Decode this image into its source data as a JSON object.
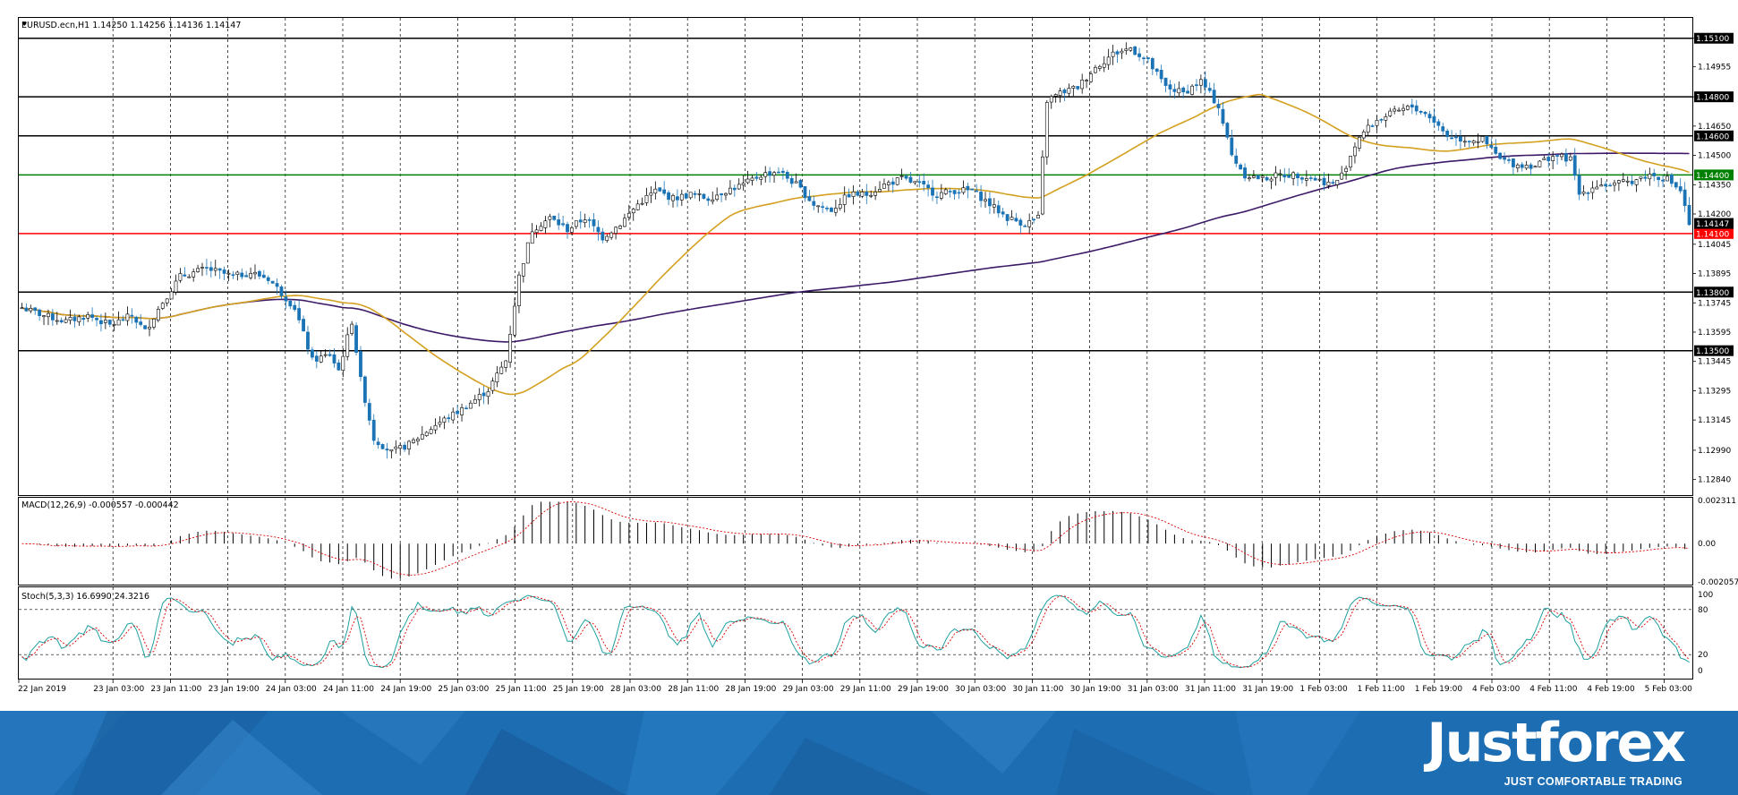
{
  "chart_data": {
    "type": "candlestick",
    "symbol_header": "EURUSD.ecn,H1  1.14250 1.14256 1.14136 1.14147",
    "ylim": [
      1.12765,
      1.15195
    ],
    "price_ticks": [
      "1.15100",
      "1.14955",
      "1.14800",
      "1.14650",
      "1.14500",
      "1.14350",
      "1.14200",
      "1.14045",
      "1.13895",
      "1.13745",
      "1.13595",
      "1.13445",
      "1.13295",
      "1.13145",
      "1.12990",
      "1.12840"
    ],
    "levels": [
      {
        "price": 1.151,
        "label": "1.15100",
        "color": "#000000"
      },
      {
        "price": 1.148,
        "label": "1.14800",
        "color": "#000000"
      },
      {
        "price": 1.146,
        "label": "1.14600",
        "color": "#000000"
      },
      {
        "price": 1.144,
        "label": "1.14400",
        "color": "#008000"
      },
      {
        "price": 1.141,
        "label": "1.14100",
        "color": "#ff0000"
      },
      {
        "price": 1.138,
        "label": "1.13800",
        "color": "#000000"
      },
      {
        "price": 1.135,
        "label": "1.13500",
        "color": "#000000"
      }
    ],
    "current_price": {
      "price": 1.14147,
      "label": "1.14147"
    },
    "x_labels": [
      "22 Jan 2019",
      "23 Jan 03:00",
      "23 Jan 11:00",
      "23 Jan 19:00",
      "24 Jan 03:00",
      "24 Jan 11:00",
      "24 Jan 19:00",
      "25 Jan 03:00",
      "25 Jan 11:00",
      "25 Jan 19:00",
      "28 Jan 03:00",
      "28 Jan 11:00",
      "28 Jan 19:00",
      "29 Jan 03:00",
      "29 Jan 11:00",
      "29 Jan 19:00",
      "30 Jan 03:00",
      "30 Jan 11:00",
      "30 Jan 19:00",
      "31 Jan 03:00",
      "31 Jan 11:00",
      "31 Jan 19:00",
      "1 Feb 03:00",
      "1 Feb 11:00",
      "1 Feb 19:00",
      "4 Feb 03:00",
      "4 Feb 11:00",
      "4 Feb 19:00",
      "5 Feb 03:00"
    ],
    "close_path": [
      [
        0,
        1.1372
      ],
      [
        5,
        1.1368
      ],
      [
        10,
        1.1365
      ],
      [
        15,
        1.1368
      ],
      [
        20,
        1.1363
      ],
      [
        25,
        1.1368
      ],
      [
        28,
        1.136
      ],
      [
        32,
        1.1375
      ],
      [
        36,
        1.1388
      ],
      [
        42,
        1.1392
      ],
      [
        48,
        1.1388
      ],
      [
        52,
        1.139
      ],
      [
        56,
        1.1387
      ],
      [
        62,
        1.1372
      ],
      [
        66,
        1.1345
      ],
      [
        70,
        1.1348
      ],
      [
        72,
        1.134
      ],
      [
        75,
        1.1365
      ],
      [
        77,
        1.1335
      ],
      [
        80,
        1.1305
      ],
      [
        84,
        1.1298
      ],
      [
        88,
        1.1302
      ],
      [
        94,
        1.1312
      ],
      [
        100,
        1.132
      ],
      [
        106,
        1.133
      ],
      [
        110,
        1.1345
      ],
      [
        113,
        1.1388
      ],
      [
        116,
        1.1412
      ],
      [
        120,
        1.1418
      ],
      [
        124,
        1.1412
      ],
      [
        128,
        1.1418
      ],
      [
        132,
        1.1408
      ],
      [
        136,
        1.1415
      ],
      [
        140,
        1.1425
      ],
      [
        144,
        1.1432
      ],
      [
        148,
        1.1428
      ],
      [
        152,
        1.143
      ],
      [
        156,
        1.1428
      ],
      [
        160,
        1.1432
      ],
      [
        164,
        1.1435
      ],
      [
        168,
        1.144
      ],
      [
        172,
        1.1442
      ],
      [
        176,
        1.1435
      ],
      [
        180,
        1.1425
      ],
      [
        184,
        1.1422
      ],
      [
        188,
        1.143
      ],
      [
        192,
        1.143
      ],
      [
        196,
        1.1435
      ],
      [
        200,
        1.1438
      ],
      [
        204,
        1.1435
      ],
      [
        208,
        1.143
      ],
      [
        212,
        1.1432
      ],
      [
        216,
        1.1432
      ],
      [
        220,
        1.1425
      ],
      [
        224,
        1.1418
      ],
      [
        228,
        1.1415
      ],
      [
        231,
        1.1418
      ],
      [
        233,
        1.1478
      ],
      [
        236,
        1.1482
      ],
      [
        240,
        1.1485
      ],
      [
        244,
        1.1495
      ],
      [
        248,
        1.1502
      ],
      [
        252,
        1.1505
      ],
      [
        256,
        1.1498
      ],
      [
        260,
        1.1485
      ],
      [
        264,
        1.1482
      ],
      [
        268,
        1.1488
      ],
      [
        272,
        1.1475
      ],
      [
        275,
        1.145
      ],
      [
        278,
        1.144
      ],
      [
        282,
        1.1438
      ],
      [
        286,
        1.144
      ],
      [
        290,
        1.144
      ],
      [
        294,
        1.1438
      ],
      [
        298,
        1.1435
      ],
      [
        300,
        1.144
      ],
      [
        304,
        1.146
      ],
      [
        308,
        1.1468
      ],
      [
        312,
        1.1472
      ],
      [
        316,
        1.1475
      ],
      [
        320,
        1.147
      ],
      [
        324,
        1.146
      ],
      [
        328,
        1.1458
      ],
      [
        332,
        1.1458
      ],
      [
        336,
        1.1448
      ],
      [
        340,
        1.1445
      ],
      [
        344,
        1.1445
      ],
      [
        348,
        1.145
      ],
      [
        352,
        1.1448
      ],
      [
        354,
        1.143
      ],
      [
        358,
        1.1435
      ],
      [
        362,
        1.1435
      ],
      [
        366,
        1.1437
      ],
      [
        370,
        1.144
      ],
      [
        374,
        1.1438
      ],
      [
        377,
        1.1432
      ],
      [
        379,
        1.14147
      ]
    ],
    "ma_slow_color": "#3d1a68",
    "ma_fast_color": "#d4a020",
    "indicators": [
      {
        "name": "MACD(12,26,9) -0.000557 -0.000442",
        "ticks": [
          "0.002311",
          "0.00",
          "-0.002057"
        ]
      },
      {
        "name": "Stoch(5,3,3) 16.6990 24.3216",
        "ticks": [
          "100",
          "80",
          "20",
          "0"
        ]
      }
    ]
  },
  "footer": {
    "logo": "Justforex",
    "tagline": "JUST COMFORTABLE TRADING"
  }
}
